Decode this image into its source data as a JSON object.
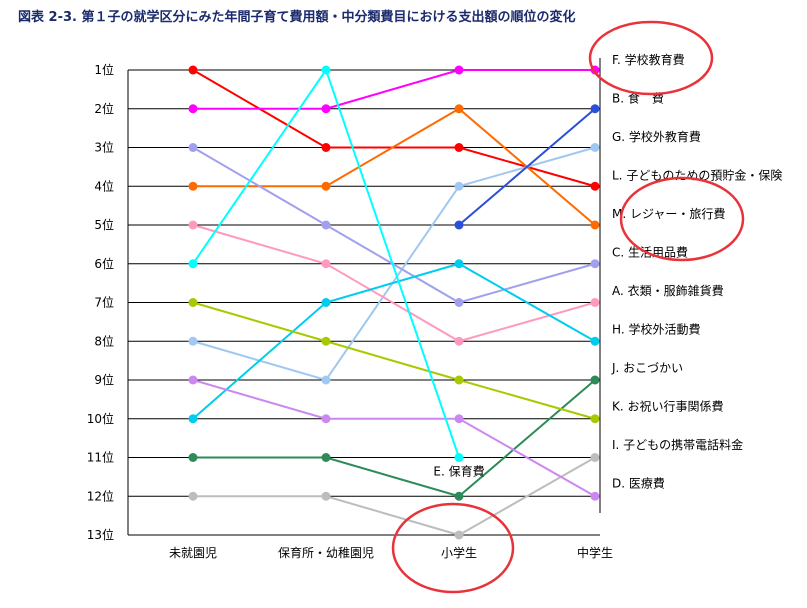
{
  "chart_data": {
    "type": "line",
    "title": "図表 2-3.  第１子の就学区分にみた年間子育て費用額・中分類費目における支出額の順位の変化",
    "categories": [
      "未就園児",
      "保育所・幼稚園児",
      "小学生",
      "中学生"
    ],
    "ytick_labels": [
      "1位",
      "2位",
      "3位",
      "4位",
      "5位",
      "6位",
      "7位",
      "8位",
      "9位",
      "10位",
      "11位",
      "12位",
      "13位"
    ],
    "ylim": [
      1,
      13
    ],
    "y_inverted": true,
    "grid": "horizontal",
    "series": [
      {
        "name": "B. 食　費",
        "color": "#ff0000",
        "values": [
          1,
          3,
          3,
          4
        ]
      },
      {
        "name": "F. 学校教育費",
        "color": "#ff00ff",
        "values": [
          2,
          2,
          1,
          1
        ]
      },
      {
        "name": "G. 学校外教育費",
        "color": "#a0c8f0",
        "values": [
          8,
          9,
          4,
          3
        ]
      },
      {
        "name": "L. 子どものための預貯金・保険",
        "color": "#ff6a00",
        "values": [
          4,
          4,
          2,
          5
        ]
      },
      {
        "name": "M. レジャー・旅行費",
        "color": "#2a4fd8",
        "values": [
          null,
          null,
          5,
          2
        ]
      },
      {
        "name": "C. 生活用品費",
        "color": "#a0a0ee",
        "values": [
          3,
          5,
          7,
          6
        ]
      },
      {
        "name": "A. 衣類・服飾雑貨費",
        "color": "#ff99c0",
        "values": [
          5,
          6,
          8,
          7
        ]
      },
      {
        "name": "H. 学校外活動費",
        "color": "#00ccee",
        "values": [
          10,
          7,
          6,
          8
        ]
      },
      {
        "name": "J. おこづかい",
        "color": "#2e8b57",
        "values": [
          11,
          11,
          12,
          9
        ]
      },
      {
        "name": "K. お祝い行事関係費",
        "color": "#a8c800",
        "values": [
          7,
          8,
          9,
          10
        ]
      },
      {
        "name": "I. 子どもの携帯電話料金",
        "color": "#bdbdbd",
        "values": [
          12,
          12,
          13,
          11
        ]
      },
      {
        "name": "D. 医療費",
        "color": "#cc88ee",
        "values": [
          9,
          10,
          10,
          12
        ]
      },
      {
        "name": "E. 保育費",
        "color": "#00ffff",
        "values": [
          6,
          1,
          11,
          null
        ]
      }
    ],
    "label_order": [
      1,
      0,
      2,
      3,
      4,
      5,
      6,
      7,
      8,
      9,
      10,
      11
    ],
    "mid_label_series": 12
  }
}
